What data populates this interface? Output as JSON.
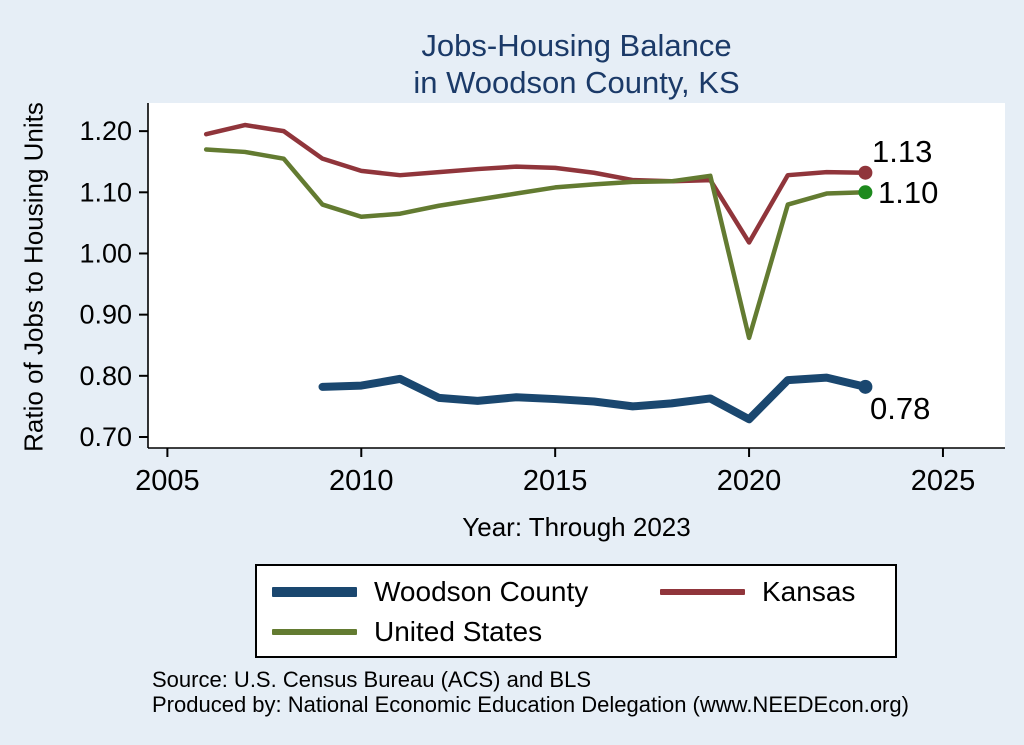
{
  "title": {
    "line1": "Jobs-Housing Balance",
    "line2": "in Woodson County, KS"
  },
  "chart_data": {
    "type": "line",
    "title": "Jobs-Housing Balance in Woodson County, KS",
    "xlabel": "Year: Through 2023",
    "ylabel": "Ratio of Jobs to Housing Units",
    "xlim": [
      2004.5,
      2026.6
    ],
    "ylim": [
      0.682,
      1.246
    ],
    "xticks": [
      "2005",
      "2010",
      "2015",
      "2020",
      "2025"
    ],
    "yticks": [
      "0.70",
      "0.80",
      "0.90",
      "1.00",
      "1.10",
      "1.20"
    ],
    "grid": false,
    "legend_position": "bottom",
    "plot_bg": "#ffffff",
    "page_bg": "#e6eef6",
    "series": [
      {
        "name": "Woodson County",
        "color": "#1a476f",
        "marker_color": "#1a476f",
        "line_width": 8,
        "end_label": "0.78",
        "x": [
          2009,
          2010,
          2011,
          2012,
          2013,
          2014,
          2015,
          2016,
          2017,
          2018,
          2019,
          2020,
          2021,
          2022,
          2023
        ],
        "values": [
          0.782,
          0.784,
          0.795,
          0.764,
          0.759,
          0.765,
          0.762,
          0.758,
          0.75,
          0.755,
          0.763,
          0.729,
          0.793,
          0.797,
          0.782
        ]
      },
      {
        "name": "Kansas",
        "color": "#90353b",
        "marker_color": "#90353b",
        "line_width": 4.5,
        "end_label": "1.13",
        "x": [
          2006,
          2007,
          2008,
          2009,
          2010,
          2011,
          2012,
          2013,
          2014,
          2015,
          2016,
          2017,
          2018,
          2019,
          2020,
          2021,
          2022,
          2023
        ],
        "values": [
          1.195,
          1.21,
          1.2,
          1.155,
          1.135,
          1.128,
          1.133,
          1.138,
          1.142,
          1.14,
          1.132,
          1.12,
          1.118,
          1.12,
          1.018,
          1.128,
          1.133,
          1.132
        ]
      },
      {
        "name": "United States",
        "color": "#637b31",
        "marker_color": "#1d8a1d",
        "line_width": 4.5,
        "end_label": "1.10",
        "x": [
          2006,
          2007,
          2008,
          2009,
          2010,
          2011,
          2012,
          2013,
          2014,
          2015,
          2016,
          2017,
          2018,
          2019,
          2020,
          2021,
          2022,
          2023
        ],
        "values": [
          1.17,
          1.166,
          1.155,
          1.08,
          1.06,
          1.065,
          1.078,
          1.088,
          1.098,
          1.108,
          1.113,
          1.117,
          1.118,
          1.127,
          0.862,
          1.08,
          1.098,
          1.1
        ]
      }
    ]
  },
  "footer": {
    "source": "Source: U.S. Census Bureau (ACS) and BLS",
    "produced_by": "Produced by: National Economic Education Delegation (www.NEEDEcon.org)"
  }
}
